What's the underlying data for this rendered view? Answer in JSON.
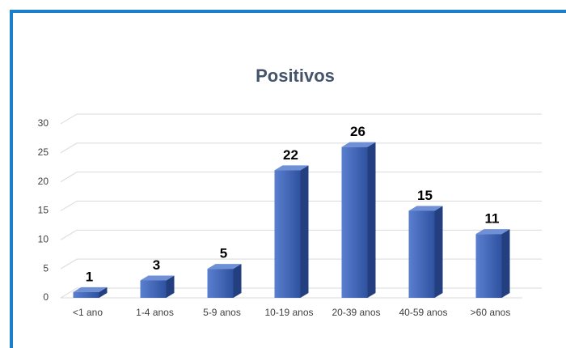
{
  "chart_data": {
    "type": "bar3d",
    "title": "Positivos",
    "categories": [
      "<1 ano",
      "1-4 anos",
      "5-9 anos",
      "10-19 anos",
      "20-39 anos",
      "40-59 anos",
      ">60 anos"
    ],
    "values": [
      1,
      3,
      5,
      22,
      26,
      15,
      11
    ],
    "color": "#3a5fb4",
    "ylim": [
      0,
      30
    ],
    "yticks": [
      0,
      5,
      10,
      15,
      20,
      25,
      30
    ],
    "grid": true
  }
}
